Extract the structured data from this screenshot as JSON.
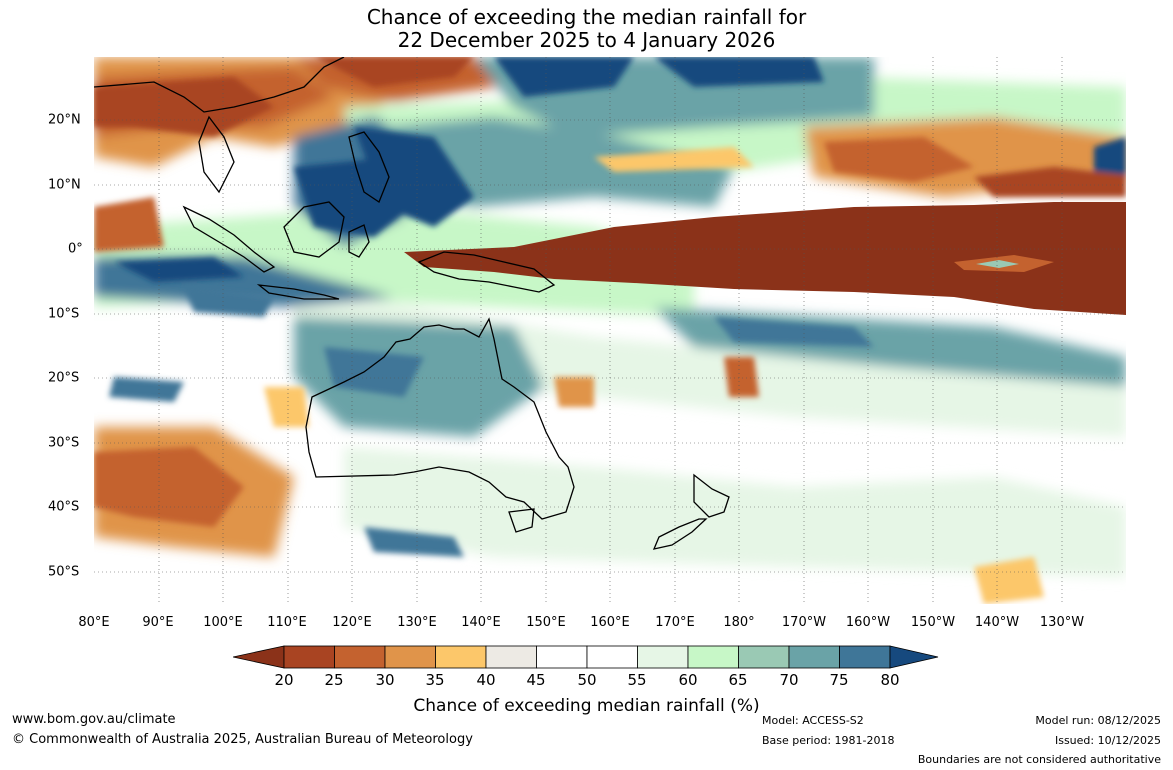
{
  "title": {
    "line1": "Chance of exceeding the median rainfall for",
    "line2": "22 December 2025 to 4 January 2026"
  },
  "map": {
    "lon_ticks": [
      "80°E",
      "90°E",
      "100°E",
      "110°E",
      "120°E",
      "130°E",
      "140°E",
      "150°E",
      "160°E",
      "170°E",
      "180°",
      "170°W",
      "160°W",
      "150°W",
      "140°W",
      "130°W"
    ],
    "lat_ticks": [
      "20°N",
      "10°N",
      "0°",
      "10°S",
      "20°S",
      "30°S",
      "40°S",
      "50°S"
    ]
  },
  "colorbar": {
    "labels": [
      "20",
      "25",
      "30",
      "35",
      "40",
      "45",
      "50",
      "55",
      "60",
      "65",
      "70",
      "75",
      "80"
    ],
    "colors": {
      "below20": "#8b3219",
      "c20_25": "#a94422",
      "c25_30": "#c4622f",
      "c30_35": "#e0944a",
      "c35_40": "#fcc76a",
      "c40_45": "#edeae4",
      "c45_50": "#ffffff",
      "c50_55": "#ffffff",
      "c55_60": "#e6f6e6",
      "c60_65": "#c7f7c7",
      "c65_70": "#9ac9b4",
      "c70_75": "#6aa3a7",
      "c75_80": "#3f7698",
      "above80": "#16497e"
    },
    "title": "Chance of exceeding median rainfall (%)"
  },
  "footer": {
    "website": "www.bom.gov.au/climate",
    "copyright": "© Commonwealth of Australia 2025, Australian Bureau of Meteorology",
    "model": "Model: ACCESS-S2",
    "base_period": "Base period: 1981-2018",
    "model_run": "Model run: 08/12/2025",
    "issued": "Issued: 10/12/2025",
    "disclaimer": "Boundaries are not considered authoritative"
  }
}
